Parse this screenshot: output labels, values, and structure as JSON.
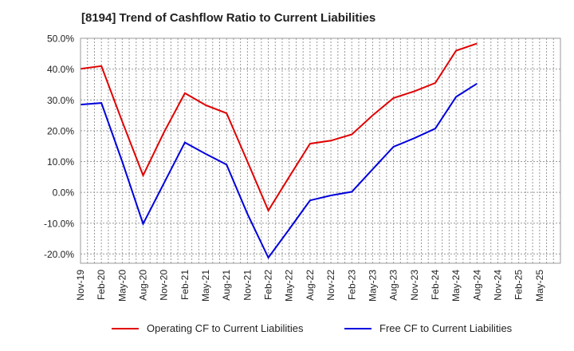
{
  "chart_data": {
    "type": "line",
    "title": "[8194]  Trend of Cashflow Ratio to Current Liabilities",
    "xlabel": "",
    "ylabel": "",
    "categories": [
      "Nov-19",
      "Feb-20",
      "May-20",
      "Aug-20",
      "Nov-20",
      "Feb-21",
      "May-21",
      "Aug-21",
      "Nov-21",
      "Feb-22",
      "May-22",
      "Aug-22",
      "Nov-22",
      "Feb-23",
      "May-23",
      "Aug-23",
      "Nov-23",
      "Feb-24",
      "May-24",
      "Aug-24",
      "Nov-24",
      "Feb-25",
      "May-25"
    ],
    "y_ticks": [
      "50.0%",
      "40.0%",
      "30.0%",
      "20.0%",
      "10.0%",
      "0.0%",
      "-10.0%",
      "-20.0%"
    ],
    "ylim": [
      -23,
      50
    ],
    "grid": true,
    "legend_position": "bottom",
    "series": [
      {
        "name": "Operating CF to Current Liabilities",
        "color": "#e00000",
        "values": [
          40.1,
          41.0,
          23.0,
          5.5,
          19.5,
          32.2,
          28.3,
          25.7,
          10.0,
          -5.9,
          5.0,
          15.8,
          16.8,
          18.8,
          25.0,
          30.6,
          32.8,
          35.5,
          46.0,
          48.3,
          null,
          null,
          null
        ]
      },
      {
        "name": "Free CF to Current Liabilities",
        "color": "#0000dd",
        "values": [
          28.5,
          29.0,
          10.0,
          -10.2,
          3.0,
          16.2,
          12.5,
          9.0,
          -7.0,
          -21.2,
          -12.0,
          -2.6,
          -1.0,
          0.2,
          7.5,
          14.8,
          17.6,
          20.7,
          31.0,
          35.3,
          null,
          null,
          null
        ]
      }
    ]
  }
}
